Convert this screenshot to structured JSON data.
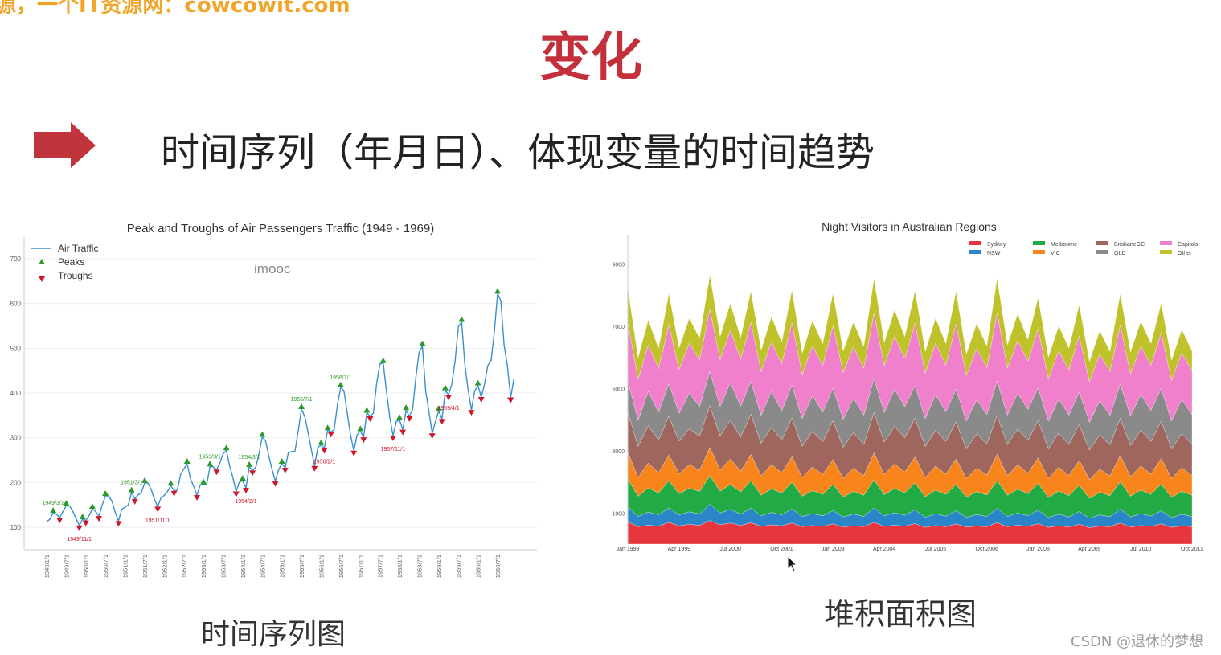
{
  "watermark_top": "源，一个IT资源网：cowcowit.com",
  "slide_title": "变化",
  "heading": "时间序列（年月日）、体现变量的时间趋势",
  "colors": {
    "title_red": "#c3303b",
    "arrow_red": "#c0353b",
    "watermark_orange": "#f0a528"
  },
  "left_caption": "时间序列图",
  "right_caption": "堆积面积图",
  "imooc_watermark": "imooc",
  "csdn_watermark": "CSDN @退休的梦想",
  "chart_data": [
    {
      "type": "line",
      "title": "Peak and Troughs of Air Passengers Traffic (1949 - 1969)",
      "xlabel": "",
      "ylabel": "",
      "ylim": [
        75,
        725
      ],
      "yticks": [
        100,
        200,
        300,
        400,
        500,
        600,
        700
      ],
      "xticks": [
        "1949/1/1",
        "1949/7/1",
        "1950/1/1",
        "1950/7/1",
        "1951/1/1",
        "1951/7/1",
        "1952/1/1",
        "1952/7/1",
        "1953/1/1",
        "1953/7/1",
        "1954/1/1",
        "1954/7/1",
        "1955/1/1",
        "1955/7/1",
        "1956/1/1",
        "1956/7/1",
        "1957/1/1",
        "1957/7/1",
        "1958/1/1",
        "1958/7/1",
        "1959/1/1",
        "1959/7/1",
        "1960/1/1",
        "1960/7/1"
      ],
      "grid": true,
      "legend": {
        "placement": "top-left",
        "entries": [
          "Air Traffic",
          "Peaks",
          "Troughs"
        ]
      },
      "colors": {
        "line": "#3a8fd0",
        "peaks": "#2a9a2a",
        "troughs": "#d0152a"
      },
      "start": "1949/1/1",
      "series": [
        {
          "name": "Air Traffic",
          "values": [
            112,
            118,
            132,
            129,
            121,
            135,
            148,
            148,
            136,
            119,
            104,
            118,
            115,
            126,
            141,
            135,
            125,
            149,
            170,
            170,
            158,
            133,
            114,
            140,
            145,
            150,
            178,
            163,
            172,
            178,
            199,
            199,
            184,
            162,
            146,
            166,
            171,
            180,
            193,
            181,
            183,
            218,
            230,
            242,
            209,
            191,
            172,
            194,
            196,
            196,
            236,
            235,
            229,
            243,
            264,
            272,
            237,
            211,
            180,
            201,
            204,
            188,
            235,
            227,
            234,
            264,
            302,
            293,
            259,
            229,
            203,
            229,
            242,
            233,
            267,
            269,
            270,
            315,
            364,
            347,
            312,
            274,
            237,
            278,
            284,
            277,
            317,
            313,
            318,
            374,
            413,
            405,
            355,
            306,
            271,
            306,
            315,
            301,
            356,
            348,
            355,
            422,
            465,
            467,
            404,
            347,
            305,
            336,
            340,
            318,
            362,
            348,
            363,
            435,
            491,
            505,
            404,
            359,
            310,
            337,
            360,
            342,
            406,
            396,
            420,
            472,
            548,
            559,
            463,
            407,
            362,
            405,
            417,
            391,
            419,
            461,
            472,
            535,
            622,
            606,
            508,
            461,
            390,
            432
          ]
        }
      ],
      "annotations": [
        {
          "text": "1949/3/1",
          "kind": "peak"
        },
        {
          "text": "1949/11/1",
          "kind": "trough"
        },
        {
          "text": "1951/3/1",
          "kind": "peak"
        },
        {
          "text": "1951/11/1",
          "kind": "trough"
        },
        {
          "text": "1953/3/1",
          "kind": "peak"
        },
        {
          "text": "1954/2/1",
          "kind": "trough"
        },
        {
          "text": "1954/3/1",
          "kind": "peak"
        },
        {
          "text": "1955/7/1",
          "kind": "peak"
        },
        {
          "text": "1956/2/1",
          "kind": "trough"
        },
        {
          "text": "1956/7/1",
          "kind": "peak"
        },
        {
          "text": "1957/11/1",
          "kind": "trough"
        },
        {
          "text": "1959/4/1",
          "kind": "trough"
        }
      ]
    },
    {
      "type": "area",
      "stacked": true,
      "title": "Night Visitors in Australian Regions",
      "xlabel": "",
      "ylabel": "",
      "ylim": [
        0,
        10000
      ],
      "yticks": [
        1000,
        3000,
        5000,
        7000,
        9000
      ],
      "xticks": [
        "Jan 1998",
        "Apr 1999",
        "Jul 2000",
        "Oct 2001",
        "Jan 2003",
        "Apr 2004",
        "Jul 2005",
        "Oct 2006",
        "Jan 2008",
        "Apr 2009",
        "Jul 2010",
        "Oct 2011"
      ],
      "grid": false,
      "legend": {
        "placement": "top-right"
      },
      "frequency": "quarterly",
      "series": [
        {
          "name": "Sydney",
          "color": "#e8363f",
          "values": [
            720,
            560,
            610,
            580,
            700,
            590,
            640,
            600,
            760,
            620,
            680,
            600,
            690,
            570,
            620,
            590,
            680,
            560,
            600,
            570,
            650,
            550,
            590,
            560,
            700,
            570,
            610,
            580,
            660,
            540,
            600,
            560,
            650,
            550,
            580,
            560,
            690,
            560,
            610,
            570,
            660,
            540,
            590,
            550,
            640,
            530,
            580,
            560,
            680,
            550,
            600,
            570,
            650,
            540,
            590,
            560
          ]
        },
        {
          "name": "NSW",
          "color": "#2a86c8",
          "values": [
            480,
            330,
            420,
            360,
            460,
            350,
            400,
            370,
            520,
            380,
            440,
            360,
            470,
            340,
            400,
            350,
            450,
            330,
            380,
            340,
            430,
            320,
            380,
            330,
            470,
            340,
            400,
            350,
            440,
            320,
            380,
            340,
            420,
            310,
            370,
            330,
            460,
            330,
            390,
            340,
            430,
            310,
            370,
            320,
            410,
            300,
            360,
            320,
            450,
            320,
            380,
            330,
            420,
            310,
            370,
            320
          ]
        },
        {
          "name": "Melbourne",
          "color": "#22aa44",
          "values": [
            900,
            650,
            780,
            700,
            880,
            680,
            760,
            720,
            920,
            700,
            800,
            720,
            880,
            660,
            760,
            700,
            860,
            650,
            740,
            690,
            840,
            640,
            730,
            680,
            900,
            680,
            780,
            720,
            870,
            660,
            760,
            700,
            850,
            650,
            740,
            690,
            890,
            680,
            770,
            710,
            860,
            650,
            750,
            690,
            840,
            640,
            730,
            680,
            880,
            670,
            760,
            700,
            860,
            650,
            740,
            690
          ]
        },
        {
          "name": "VIC",
          "color": "#f7851c",
          "values": [
            850,
            600,
            800,
            650,
            820,
            640,
            760,
            680,
            900,
            680,
            820,
            660,
            840,
            620,
            780,
            650,
            820,
            600,
            760,
            640,
            800,
            600,
            740,
            630,
            860,
            640,
            790,
            670,
            830,
            620,
            770,
            650,
            810,
            600,
            750,
            640,
            850,
            630,
            780,
            660,
            820,
            610,
            760,
            640,
            800,
            600,
            740,
            630,
            840,
            630,
            770,
            650,
            820,
            610,
            750,
            640
          ]
        },
        {
          "name": "BrisbaneGC",
          "color": "#9e665c",
          "values": [
            1300,
            1000,
            1200,
            1050,
            1250,
            1050,
            1150,
            1100,
            1350,
            1100,
            1250,
            1100,
            1300,
            1050,
            1200,
            1050,
            1250,
            1000,
            1150,
            1050,
            1250,
            1000,
            1150,
            1000,
            1300,
            1050,
            1200,
            1100,
            1250,
            1000,
            1150,
            1050,
            1200,
            950,
            1100,
            1000,
            1250,
            1000,
            1150,
            1050,
            1200,
            950,
            1100,
            1000,
            1150,
            950,
            1100,
            1000,
            1200,
            1000,
            1150,
            1050,
            1200,
            950,
            1100,
            1000
          ]
        },
        {
          "name": "QLD",
          "color": "#8a8a8a",
          "values": [
            1000,
            850,
            1100,
            900,
            1050,
            900,
            1150,
            950,
            1100,
            950,
            1200,
            1000,
            1050,
            900,
            1150,
            950,
            1050,
            900,
            1150,
            950,
            1050,
            900,
            1100,
            950,
            1100,
            950,
            1200,
            1000,
            1050,
            900,
            1150,
            950,
            1050,
            900,
            1100,
            950,
            1100,
            950,
            1150,
            1000,
            1050,
            900,
            1100,
            950,
            1050,
            900,
            1100,
            950,
            1100,
            950,
            1150,
            1000,
            1050,
            900,
            1100,
            950
          ]
        },
        {
          "name": "Capitals",
          "color": "#f07fcc",
          "values": [
            1900,
            1300,
            1500,
            1400,
            1900,
            1400,
            1600,
            1500,
            2000,
            1500,
            1700,
            1500,
            1900,
            1400,
            1600,
            1500,
            2000,
            1400,
            1600,
            1500,
            2000,
            1500,
            1650,
            1500,
            2100,
            1500,
            1700,
            1550,
            2000,
            1450,
            1650,
            1500,
            2100,
            1450,
            1650,
            1500,
            2200,
            1500,
            1700,
            1550,
            1900,
            1350,
            1550,
            1450,
            1800,
            1300,
            1500,
            1400,
            1900,
            1350,
            1550,
            1450,
            1800,
            1300,
            1500,
            1400
          ]
        },
        {
          "name": "Other",
          "color": "#bfc22a",
          "values": [
            1100,
            700,
            800,
            650,
            1000,
            700,
            800,
            700,
            1100,
            750,
            850,
            700,
            1000,
            700,
            800,
            700,
            1050,
            700,
            800,
            700,
            1050,
            700,
            800,
            700,
            1100,
            750,
            850,
            700,
            1050,
            700,
            800,
            700,
            1050,
            700,
            800,
            700,
            1100,
            750,
            850,
            700,
            1000,
            700,
            800,
            700,
            1000,
            650,
            750,
            650,
            1000,
            700,
            800,
            700,
            950,
            650,
            750,
            650
          ]
        }
      ]
    }
  ]
}
